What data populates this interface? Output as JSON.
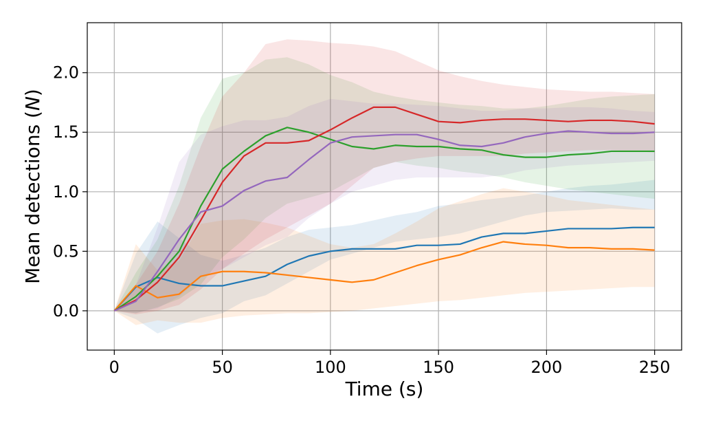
{
  "chart_data": {
    "type": "line",
    "title": "",
    "xlabel": "Time (s)",
    "ylabel_prefix": "Mean detections (",
    "ylabel_italic": "N",
    "ylabel_suffix": ")",
    "xlim": [
      -12.5,
      262.5
    ],
    "ylim": [
      -0.33,
      2.42
    ],
    "xticks": [
      0,
      50,
      100,
      150,
      200,
      250
    ],
    "yticks": [
      0.0,
      0.5,
      1.0,
      1.5,
      2.0
    ],
    "xtick_labels": [
      "0",
      "50",
      "100",
      "150",
      "200",
      "250"
    ],
    "ytick_labels": [
      "0.0",
      "0.5",
      "1.0",
      "1.5",
      "2.0"
    ],
    "grid": true,
    "legend": "none",
    "x": [
      0,
      10,
      20,
      30,
      40,
      50,
      60,
      70,
      80,
      90,
      100,
      110,
      120,
      130,
      140,
      150,
      160,
      170,
      180,
      190,
      200,
      210,
      220,
      230,
      240,
      250
    ],
    "series": [
      {
        "color": "#1f77b4",
        "values": [
          0.0,
          0.2,
          0.28,
          0.23,
          0.21,
          0.21,
          0.25,
          0.29,
          0.39,
          0.46,
          0.5,
          0.52,
          0.52,
          0.52,
          0.55,
          0.55,
          0.56,
          0.62,
          0.65,
          0.65,
          0.67,
          0.69,
          0.69,
          0.69,
          0.7,
          0.7
        ],
        "lower": [
          0.0,
          -0.07,
          -0.19,
          -0.12,
          -0.06,
          -0.02,
          0.08,
          0.13,
          0.23,
          0.33,
          0.43,
          0.48,
          0.53,
          0.58,
          0.6,
          0.62,
          0.65,
          0.7,
          0.75,
          0.8,
          0.83,
          0.84,
          0.85,
          0.86,
          0.85,
          0.85
        ],
        "upper": [
          0.0,
          0.48,
          0.75,
          0.61,
          0.47,
          0.42,
          0.47,
          0.53,
          0.62,
          0.68,
          0.7,
          0.72,
          0.76,
          0.8,
          0.83,
          0.88,
          0.9,
          0.93,
          0.95,
          0.97,
          1.0,
          1.03,
          1.05,
          1.06,
          1.08,
          1.1
        ]
      },
      {
        "color": "#ff7f0e",
        "values": [
          0.0,
          0.21,
          0.11,
          0.14,
          0.29,
          0.33,
          0.33,
          0.32,
          0.3,
          0.28,
          0.26,
          0.24,
          0.26,
          0.32,
          0.38,
          0.43,
          0.47,
          0.53,
          0.58,
          0.56,
          0.55,
          0.53,
          0.53,
          0.52,
          0.52,
          0.51
        ],
        "lower": [
          0.0,
          -0.12,
          -0.08,
          -0.1,
          -0.1,
          -0.06,
          -0.04,
          -0.03,
          -0.02,
          -0.02,
          -0.01,
          0.0,
          0.02,
          0.04,
          0.06,
          0.08,
          0.09,
          0.11,
          0.13,
          0.15,
          0.16,
          0.17,
          0.18,
          0.19,
          0.2,
          0.2
        ],
        "upper": [
          0.0,
          0.56,
          0.34,
          0.42,
          0.73,
          0.76,
          0.77,
          0.74,
          0.7,
          0.63,
          0.56,
          0.53,
          0.56,
          0.65,
          0.75,
          0.86,
          0.92,
          0.98,
          1.03,
          1.0,
          0.97,
          0.93,
          0.91,
          0.89,
          0.87,
          0.85
        ]
      },
      {
        "color": "#2ca02c",
        "values": [
          0.0,
          0.12,
          0.29,
          0.5,
          0.88,
          1.19,
          1.34,
          1.47,
          1.54,
          1.5,
          1.44,
          1.38,
          1.36,
          1.39,
          1.38,
          1.38,
          1.36,
          1.35,
          1.31,
          1.29,
          1.29,
          1.31,
          1.32,
          1.34,
          1.34,
          1.34
        ],
        "lower": [
          0.0,
          -0.02,
          0.03,
          0.1,
          0.22,
          0.45,
          0.6,
          0.78,
          0.9,
          0.95,
          1.0,
          1.1,
          1.2,
          1.25,
          1.22,
          1.2,
          1.17,
          1.15,
          1.12,
          1.08,
          1.05,
          1.02,
          1.0,
          0.98,
          0.96,
          0.94
        ],
        "upper": [
          0.0,
          0.32,
          0.6,
          1.05,
          1.62,
          1.95,
          2.0,
          2.11,
          2.13,
          2.07,
          1.98,
          1.92,
          1.84,
          1.8,
          1.77,
          1.75,
          1.73,
          1.72,
          1.7,
          1.7,
          1.72,
          1.75,
          1.78,
          1.8,
          1.81,
          1.82
        ]
      },
      {
        "color": "#d62728",
        "values": [
          0.0,
          0.09,
          0.24,
          0.45,
          0.76,
          1.08,
          1.3,
          1.41,
          1.41,
          1.43,
          1.52,
          1.62,
          1.71,
          1.71,
          1.65,
          1.59,
          1.58,
          1.6,
          1.61,
          1.61,
          1.6,
          1.59,
          1.6,
          1.6,
          1.59,
          1.57
        ],
        "lower": [
          0.0,
          -0.03,
          0.0,
          0.05,
          0.18,
          0.35,
          0.48,
          0.6,
          0.7,
          0.8,
          0.9,
          1.05,
          1.2,
          1.25,
          1.28,
          1.3,
          1.3,
          1.3,
          1.3,
          1.32,
          1.33,
          1.34,
          1.35,
          1.35,
          1.34,
          1.33
        ],
        "upper": [
          0.0,
          0.22,
          0.5,
          0.9,
          1.38,
          1.8,
          2.0,
          2.24,
          2.28,
          2.27,
          2.25,
          2.24,
          2.22,
          2.18,
          2.1,
          2.02,
          1.97,
          1.93,
          1.9,
          1.88,
          1.86,
          1.85,
          1.84,
          1.84,
          1.83,
          1.82
        ]
      },
      {
        "color": "#9467bd",
        "values": [
          0.0,
          0.08,
          0.33,
          0.6,
          0.83,
          0.88,
          1.01,
          1.09,
          1.12,
          1.27,
          1.41,
          1.46,
          1.47,
          1.48,
          1.48,
          1.44,
          1.39,
          1.38,
          1.41,
          1.46,
          1.49,
          1.51,
          1.5,
          1.49,
          1.49,
          1.5
        ],
        "lower": [
          0.0,
          -0.02,
          0.02,
          0.12,
          0.28,
          0.35,
          0.45,
          0.55,
          0.62,
          0.78,
          0.9,
          1.0,
          1.05,
          1.1,
          1.12,
          1.12,
          1.12,
          1.12,
          1.14,
          1.18,
          1.2,
          1.22,
          1.23,
          1.24,
          1.25,
          1.26
        ],
        "upper": [
          0.0,
          0.22,
          0.7,
          1.25,
          1.48,
          1.55,
          1.6,
          1.6,
          1.63,
          1.72,
          1.78,
          1.76,
          1.74,
          1.74,
          1.73,
          1.72,
          1.7,
          1.68,
          1.68,
          1.7,
          1.7,
          1.71,
          1.71,
          1.7,
          1.68,
          1.67
        ]
      }
    ]
  }
}
